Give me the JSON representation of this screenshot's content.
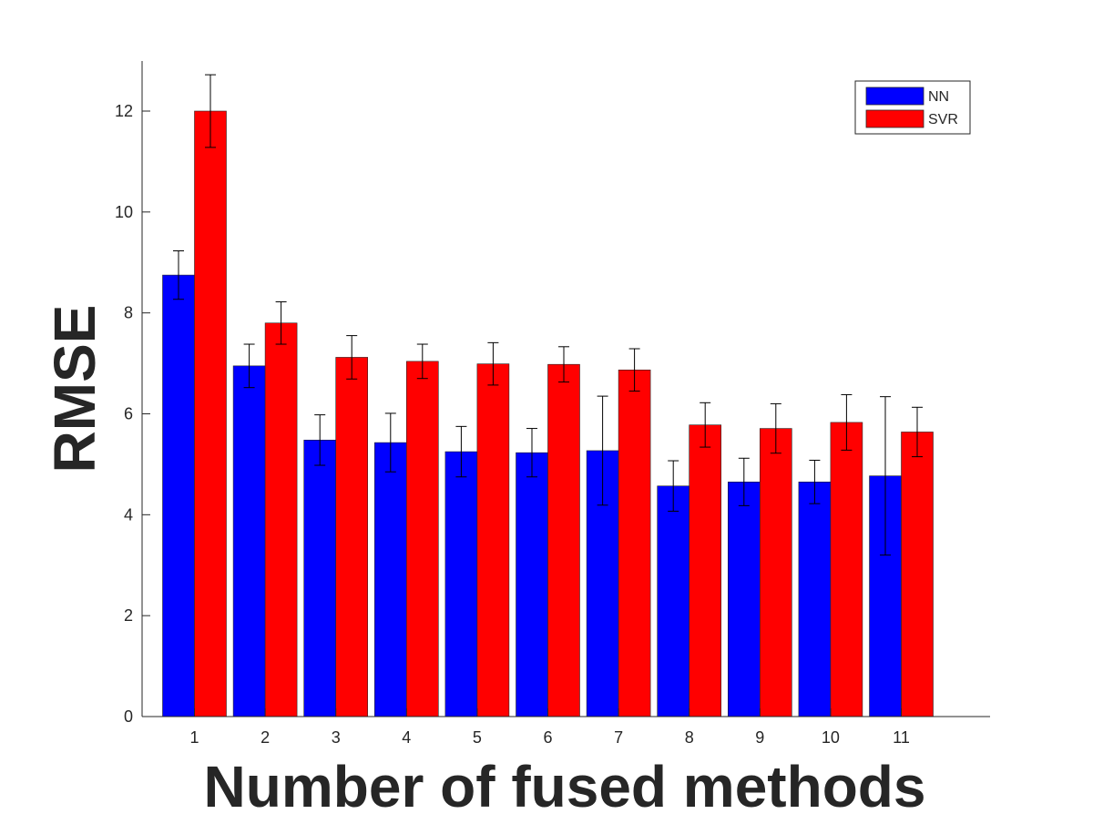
{
  "chart_data": {
    "type": "bar",
    "title": "",
    "xlabel": "Number of fused methods",
    "ylabel": "RMSE",
    "categories": [
      "1",
      "2",
      "3",
      "4",
      "5",
      "6",
      "7",
      "8",
      "9",
      "10",
      "11"
    ],
    "ylim": [
      0,
      13
    ],
    "yticks": [
      0,
      2,
      4,
      6,
      8,
      10,
      12
    ],
    "grid": false,
    "legend_position": "top-right",
    "series": [
      {
        "name": "NN",
        "color": "#0000ff",
        "values": [
          8.75,
          6.95,
          5.48,
          5.43,
          5.25,
          5.23,
          5.27,
          4.57,
          4.65,
          4.65,
          4.77
        ],
        "errors": [
          0.48,
          0.43,
          0.5,
          0.58,
          0.5,
          0.48,
          1.08,
          0.5,
          0.47,
          0.43,
          1.57
        ]
      },
      {
        "name": "SVR",
        "color": "#ff0000",
        "values": [
          12.0,
          7.8,
          7.12,
          7.04,
          6.99,
          6.98,
          6.87,
          5.78,
          5.71,
          5.83,
          5.64
        ],
        "errors": [
          0.72,
          0.42,
          0.43,
          0.34,
          0.42,
          0.35,
          0.42,
          0.44,
          0.49,
          0.55,
          0.49
        ]
      }
    ]
  }
}
